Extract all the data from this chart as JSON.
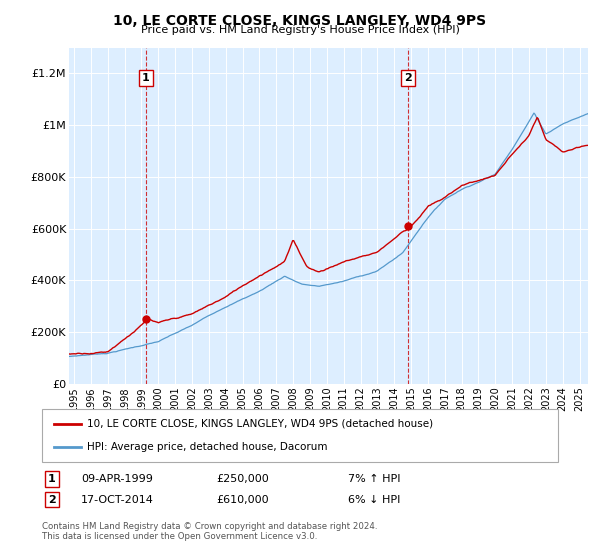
{
  "title": "10, LE CORTE CLOSE, KINGS LANGLEY, WD4 9PS",
  "subtitle": "Price paid vs. HM Land Registry's House Price Index (HPI)",
  "ylim": [
    0,
    1300000
  ],
  "yticks": [
    0,
    200000,
    400000,
    600000,
    800000,
    1000000,
    1200000
  ],
  "ytick_labels": [
    "£0",
    "£200K",
    "£400K",
    "£600K",
    "£800K",
    "£1M",
    "£1.2M"
  ],
  "background_color": "#ffffff",
  "plot_bg_color": "#ddeeff",
  "grid_color": "#ffffff",
  "sale1": {
    "date_num": 1999.27,
    "price": 250000,
    "label": "1",
    "date_str": "09-APR-1999",
    "price_str": "£250,000",
    "pct": "7% ↑ HPI"
  },
  "sale2": {
    "date_num": 2014.79,
    "price": 610000,
    "label": "2",
    "date_str": "17-OCT-2014",
    "price_str": "£610,000",
    "pct": "6% ↓ HPI"
  },
  "line_color_red": "#cc0000",
  "line_color_blue": "#5599cc",
  "vline_color": "#cc0000",
  "marker_color": "#cc0000",
  "legend_label_red": "10, LE CORTE CLOSE, KINGS LANGLEY, WD4 9PS (detached house)",
  "legend_label_blue": "HPI: Average price, detached house, Dacorum",
  "footnote": "Contains HM Land Registry data © Crown copyright and database right 2024.\nThis data is licensed under the Open Government Licence v3.0.",
  "xlim_start": 1994.7,
  "xlim_end": 2025.5,
  "xticks": [
    1995,
    1996,
    1997,
    1998,
    1999,
    2000,
    2001,
    2002,
    2003,
    2004,
    2005,
    2006,
    2007,
    2008,
    2009,
    2010,
    2011,
    2012,
    2013,
    2014,
    2015,
    2016,
    2017,
    2018,
    2019,
    2020,
    2021,
    2022,
    2023,
    2024,
    2025
  ]
}
